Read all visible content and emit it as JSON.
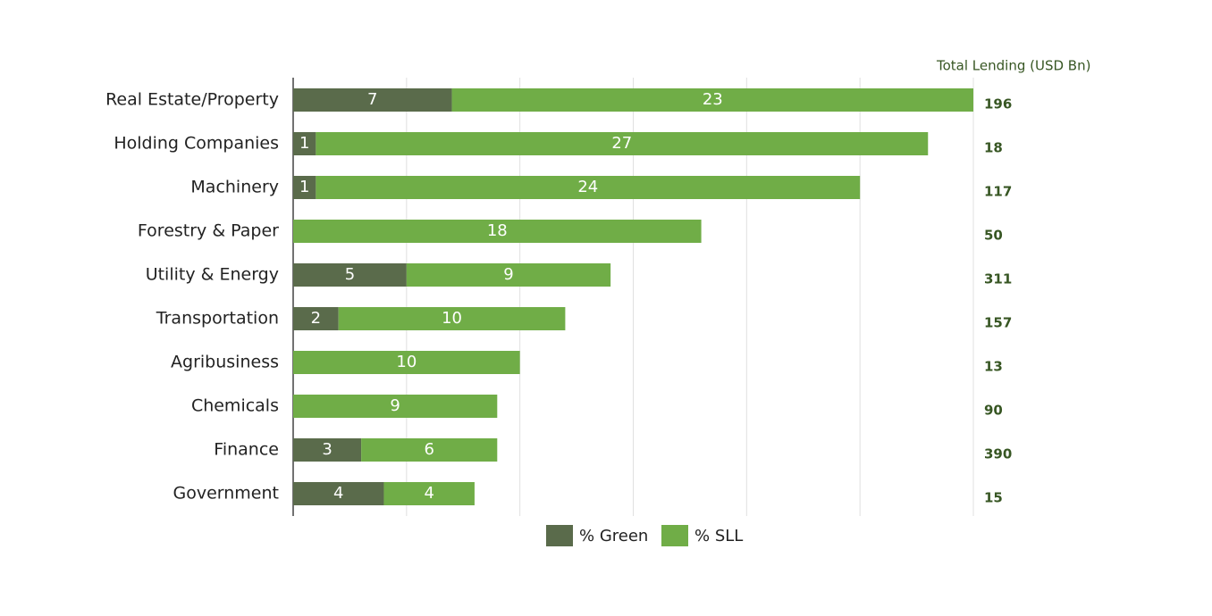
{
  "chart_data": {
    "type": "stacked-bar-horizontal",
    "categories": [
      "Real Estate/Property",
      "Holding Companies",
      "Machinery",
      "Forestry & Paper",
      "Utility & Energy",
      "Transportation",
      "Agribusiness",
      "Chemicals",
      "Finance",
      "Government"
    ],
    "series": [
      {
        "name": "% Green",
        "color": "#5a6b4b",
        "values": [
          7,
          1,
          1,
          null,
          5,
          2,
          null,
          null,
          3,
          4
        ]
      },
      {
        "name": "% SLL",
        "color": "#70ad47",
        "values": [
          23,
          27,
          24,
          18,
          9,
          10,
          10,
          9,
          6,
          4
        ]
      }
    ],
    "xlim": [
      0,
      30
    ],
    "xticks": [
      5,
      10,
      15,
      20,
      25,
      30
    ],
    "grid": true,
    "total_lending": {
      "label": "Total Lending (USD Bn)",
      "values": [
        196,
        18,
        117,
        50,
        311,
        157,
        13,
        90,
        390,
        15
      ]
    }
  }
}
